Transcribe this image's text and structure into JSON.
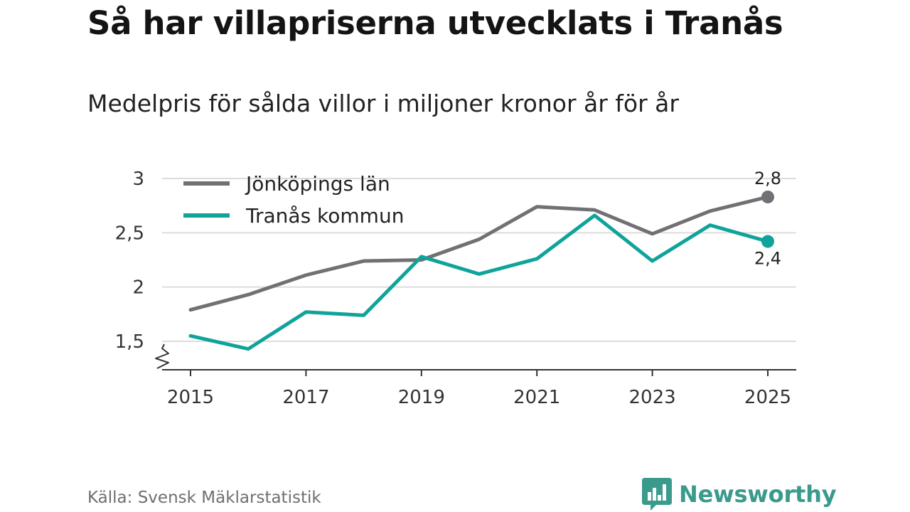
{
  "title": "Så har villapriserna utvecklats i Tranås",
  "subtitle": "Medelpris för sålda villor i miljoner kronor år för år",
  "source": "Källa: Svensk Mäklarstatistik",
  "brand": {
    "name": "Newsworthy",
    "color": "#3a9a8c",
    "icon": "newsworthy-logo-icon"
  },
  "chart_data": {
    "type": "line",
    "title": "Så har villapriserna utvecklats i Tranås",
    "subtitle": "Medelpris för sålda villor i miljoner kronor år för år",
    "xlabel": "",
    "ylabel": "",
    "x": [
      2015,
      2016,
      2017,
      2018,
      2019,
      2020,
      2021,
      2022,
      2023,
      2024,
      2025
    ],
    "x_ticks": [
      "2015",
      "2017",
      "2019",
      "2021",
      "2023",
      "2025"
    ],
    "y_ticks": [
      "1,5",
      "2",
      "2,5",
      "3"
    ],
    "y_tick_values": [
      1.5,
      2,
      2.5,
      3
    ],
    "xlim": [
      2015,
      2025
    ],
    "ylim": [
      1.3,
      3
    ],
    "grid": true,
    "axis_break": true,
    "legend_position": "top-left",
    "series": [
      {
        "name": "Jönköpings län",
        "color": "#717075",
        "values": [
          1.79,
          1.93,
          2.11,
          2.24,
          2.25,
          2.44,
          2.74,
          2.71,
          2.49,
          2.7,
          2.83
        ],
        "end_label": "2,8"
      },
      {
        "name": "Tranås kommun",
        "color": "#0fa39a",
        "values": [
          1.55,
          1.43,
          1.77,
          1.74,
          2.28,
          2.12,
          2.26,
          2.66,
          2.24,
          2.57,
          2.42
        ],
        "end_label": "2,4"
      }
    ]
  }
}
